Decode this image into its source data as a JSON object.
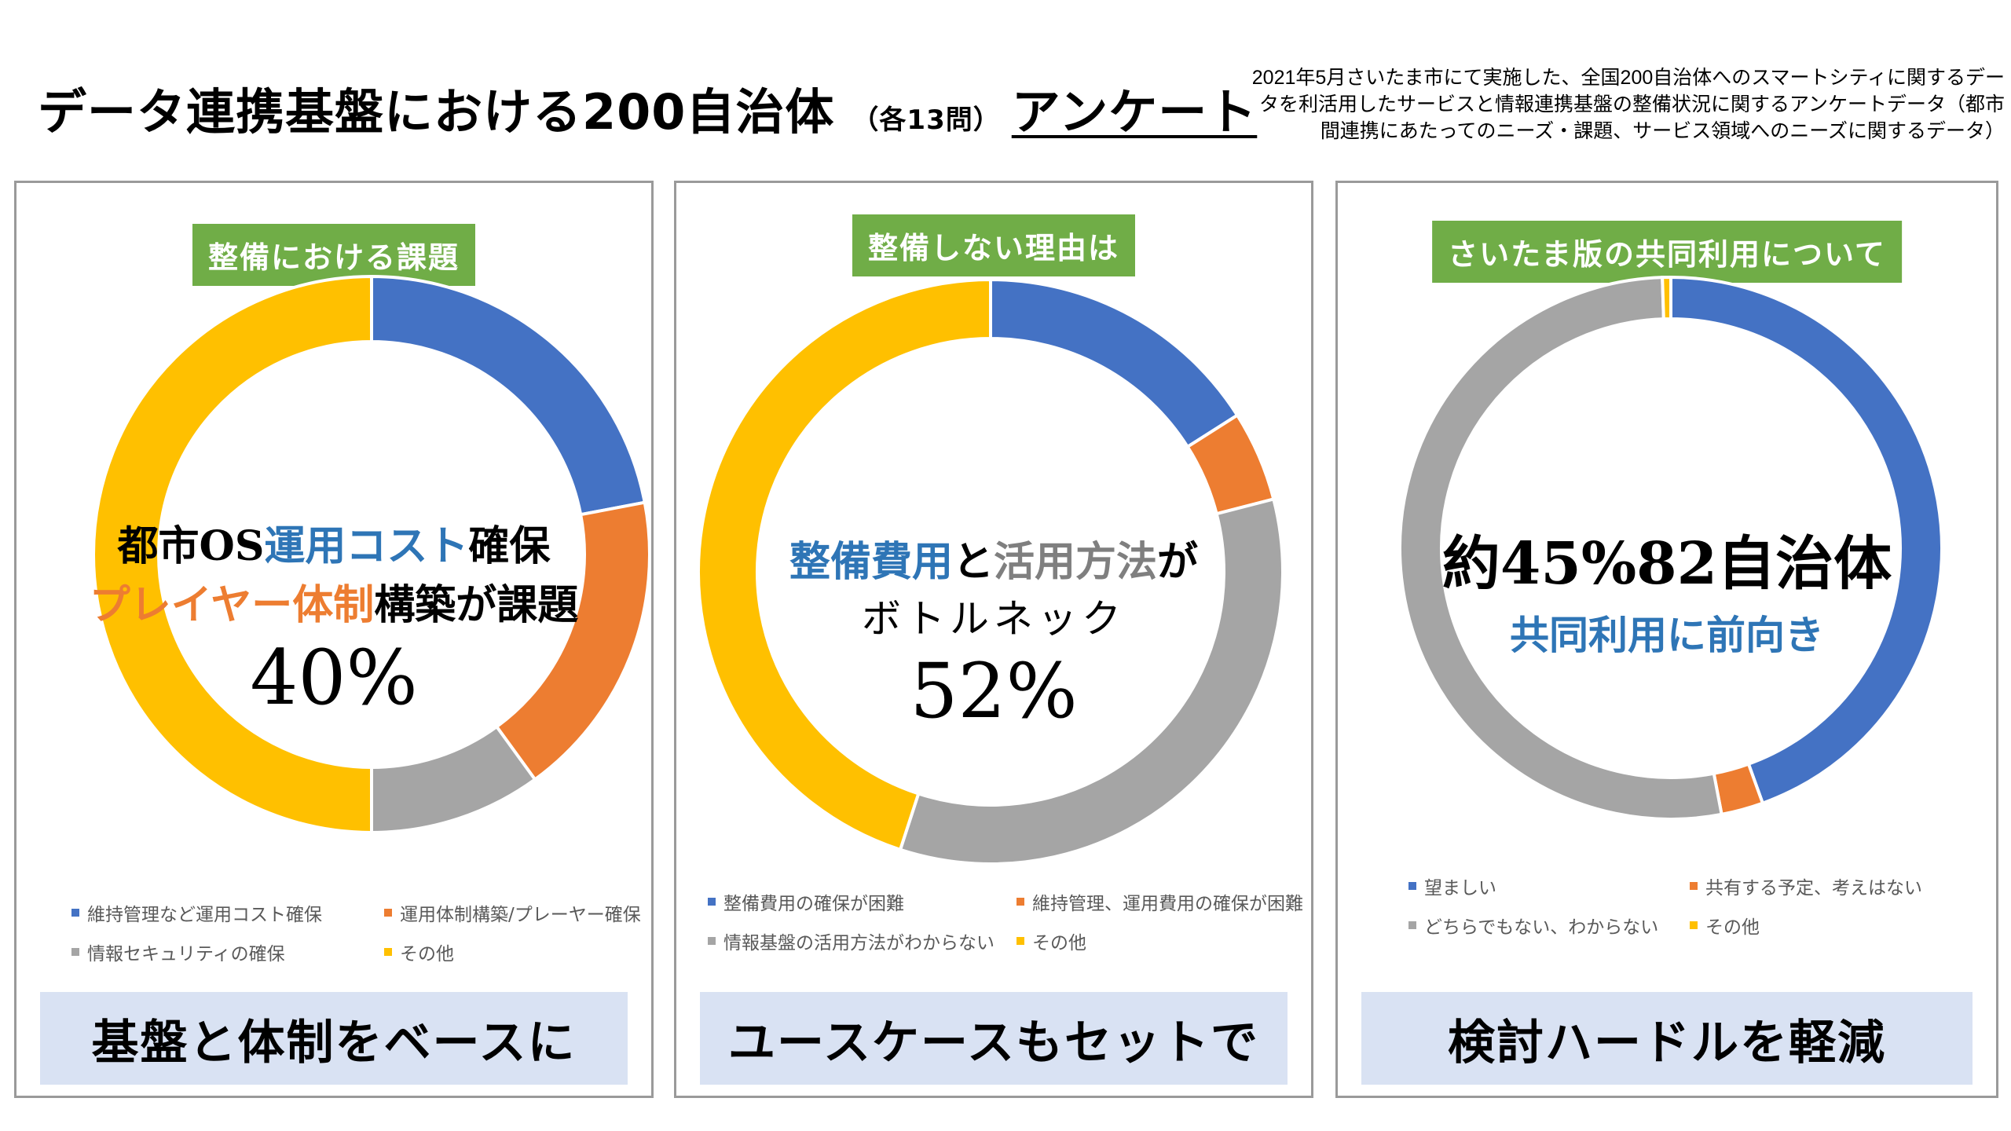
{
  "header": {
    "title_main": "データ連携基盤における200自治体",
    "title_sub": "（各13問）",
    "title_tail": "アンケート",
    "note": "2021年5月さいたま市にて実施した、全国200自治体へのスマートシティに関するデータを利活用したサービスと情報連携基盤の整備状況に関するアンケートデータ（都市間連携にあたってのニーズ・課題、サービス領域へのニーズに関するデータ）"
  },
  "colors": {
    "blue": "#4472c4",
    "orange": "#ed7d31",
    "gray": "#a5a5a5",
    "yellow": "#ffc000",
    "green": "#70ad47",
    "footer_bg": "#d9e2f3"
  },
  "panels": [
    {
      "heading": "整備における課題",
      "center": {
        "l1a": "都市OS",
        "l1b": "運用コスト",
        "l1c": "確保",
        "l2a": "プレイヤー体制",
        "l2b": "構築が課題",
        "l3": "40%"
      },
      "footer": "基盤と体制をベースに"
    },
    {
      "heading": "整備しない理由は",
      "center": {
        "l1a": "整備費用",
        "l1b": "と",
        "l1c": "活用方法",
        "l1d": "が",
        "l2": "ボトルネック",
        "l3": "52%"
      },
      "footer": "ユースケースもセットで"
    },
    {
      "heading": "さいたま版の共同利用について",
      "center": {
        "l1": "約45%82自治体",
        "l2": "共同利用に前向き"
      },
      "footer": "検討ハードルを軽減"
    }
  ],
  "chart_data": [
    {
      "type": "pie",
      "donut": true,
      "title": "整備における課題",
      "categories": [
        "維持管理など運用コスト確保",
        "運用体制構築/プレーヤー確保",
        "情報セキュリティの確保",
        "その他"
      ],
      "values": [
        22,
        18,
        10,
        50
      ],
      "colors": [
        "#4472c4",
        "#ed7d31",
        "#a5a5a5",
        "#ffc000"
      ],
      "legend": "bottom"
    },
    {
      "type": "pie",
      "donut": true,
      "title": "整備しない理由は",
      "categories": [
        "整備費用の確保が困難",
        "維持管理、運用費用の確保が困難",
        "情報基盤の活用方法がわからない",
        "その他"
      ],
      "values": [
        16,
        5,
        34,
        45
      ],
      "colors": [
        "#4472c4",
        "#ed7d31",
        "#a5a5a5",
        "#ffc000"
      ],
      "legend": "bottom"
    },
    {
      "type": "pie",
      "donut": true,
      "title": "さいたま版の共同利用について",
      "categories": [
        "望ましい",
        "共有する予定、考えはない",
        "どちらでもない、わからない",
        "その他"
      ],
      "values": [
        44.5,
        2.5,
        52.5,
        0.5
      ],
      "colors": [
        "#4472c4",
        "#ed7d31",
        "#a5a5a5",
        "#ffc000"
      ],
      "legend": "bottom"
    }
  ]
}
